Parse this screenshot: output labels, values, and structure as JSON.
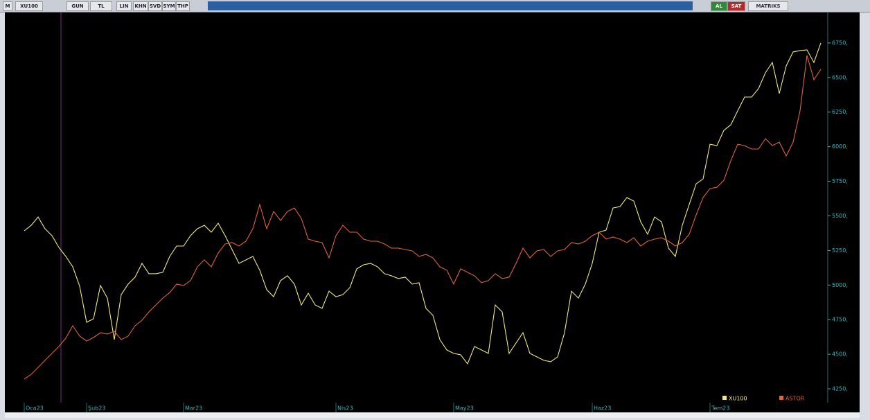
{
  "toolbar": {
    "left": [
      "M",
      "XU100",
      "GUN",
      "TL",
      "LIN",
      "KHN",
      "SVD",
      "SYM",
      "THP"
    ],
    "right": [
      "AL",
      "SAT",
      "MATRIKS"
    ]
  },
  "chart_data": {
    "type": "line",
    "categories": [
      "Oca23",
      null,
      null,
      null,
      null,
      null,
      null,
      null,
      null,
      "Şub23",
      null,
      null,
      null,
      null,
      null,
      null,
      null,
      null,
      null,
      null,
      null,
      null,
      null,
      "Mar23",
      null,
      null,
      null,
      null,
      null,
      null,
      null,
      null,
      null,
      null,
      null,
      null,
      null,
      null,
      null,
      null,
      null,
      null,
      null,
      null,
      null,
      "Nis23",
      null,
      null,
      null,
      null,
      null,
      null,
      null,
      null,
      null,
      null,
      null,
      null,
      null,
      null,
      null,
      null,
      "May23",
      null,
      null,
      null,
      null,
      null,
      null,
      null,
      null,
      null,
      null,
      null,
      null,
      null,
      null,
      null,
      null,
      null,
      null,
      null,
      "Haz23",
      null,
      null,
      null,
      null,
      null,
      null,
      null,
      null,
      null,
      null,
      null,
      null,
      null,
      null,
      null,
      null,
      "Tem23",
      null,
      null,
      null,
      null,
      null,
      null,
      null,
      null,
      null,
      null,
      null,
      null,
      null,
      null,
      null,
      null
    ],
    "series": [
      {
        "name": "XU100",
        "color": "#f2ea7a",
        "values": [
          5392,
          5432,
          5492,
          5407,
          5357,
          5272,
          5207,
          5132,
          4992,
          4731,
          4756,
          4997,
          4906,
          4606,
          4931,
          5007,
          5057,
          5157,
          5082,
          5082,
          5092,
          5207,
          5282,
          5282,
          5357,
          5407,
          5432,
          5382,
          5447,
          5357,
          5257,
          5157,
          5182,
          5207,
          5107,
          4967,
          4916,
          5032,
          5067,
          5007,
          4856,
          4941,
          4856,
          4831,
          4956,
          4916,
          4931,
          4981,
          5117,
          5147,
          5157,
          5132,
          5082,
          5067,
          5047,
          5057,
          5007,
          5017,
          4831,
          4781,
          4606,
          4531,
          4506,
          4496,
          4431,
          4556,
          4531,
          4506,
          4856,
          4806,
          4506,
          4581,
          4656,
          4506,
          4481,
          4456,
          4446,
          4481,
          4656,
          4956,
          4906,
          5007,
          5157,
          5382,
          5397,
          5557,
          5567,
          5632,
          5607,
          5457,
          5367,
          5492,
          5457,
          5267,
          5207,
          5432,
          5582,
          5732,
          5767,
          6018,
          6008,
          6118,
          6158,
          6259,
          6359,
          6359,
          6419,
          6534,
          6609,
          6384,
          6584,
          6685,
          6695,
          6700,
          6609,
          6750
        ]
      },
      {
        "name": "ASTOR",
        "color": "#e0643a",
        "values": [
          4320,
          4355,
          4405,
          4456,
          4506,
          4556,
          4616,
          4706,
          4631,
          4596,
          4621,
          4656,
          4646,
          4666,
          4606,
          4631,
          4706,
          4746,
          4806,
          4856,
          4906,
          4946,
          5007,
          4997,
          5032,
          5132,
          5182,
          5132,
          5232,
          5297,
          5307,
          5282,
          5317,
          5407,
          5582,
          5407,
          5532,
          5467,
          5532,
          5557,
          5482,
          5332,
          5317,
          5307,
          5197,
          5357,
          5432,
          5382,
          5382,
          5332,
          5317,
          5317,
          5297,
          5267,
          5267,
          5257,
          5247,
          5207,
          5222,
          5197,
          5132,
          5107,
          5007,
          5117,
          5092,
          5067,
          5017,
          5032,
          5082,
          5047,
          5057,
          5157,
          5267,
          5197,
          5247,
          5257,
          5207,
          5247,
          5257,
          5307,
          5297,
          5317,
          5357,
          5382,
          5332,
          5347,
          5332,
          5307,
          5342,
          5282,
          5317,
          5332,
          5342,
          5317,
          5282,
          5307,
          5367,
          5507,
          5632,
          5697,
          5707,
          5757,
          5898,
          6018,
          6008,
          5983,
          5983,
          6058,
          6008,
          6033,
          5933,
          6033,
          6259,
          6660,
          6484,
          6560
        ]
      }
    ],
    "ylim": [
      4165,
      6970
    ],
    "yticks": [
      {
        "value": 4250,
        "label": "4250,"
      },
      {
        "value": 4500,
        "label": "4500,"
      },
      {
        "value": 4750,
        "label": "4750,"
      },
      {
        "value": 5000,
        "label": "5000,"
      },
      {
        "value": 5250,
        "label": "5250,"
      },
      {
        "value": 5500,
        "label": "5500,"
      },
      {
        "value": 5750,
        "label": "5750,"
      },
      {
        "value": 6000,
        "label": "6000,"
      },
      {
        "value": 6250,
        "label": "6250,"
      },
      {
        "value": 6500,
        "label": "6500,"
      },
      {
        "value": 6750,
        "label": "6750,"
      }
    ],
    "axis_color": "#3fb7c0"
  }
}
